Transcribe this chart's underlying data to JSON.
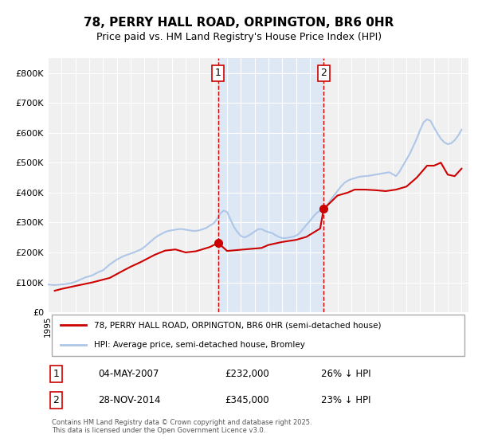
{
  "title": "78, PERRY HALL ROAD, ORPINGTON, BR6 0HR",
  "subtitle": "Price paid vs. HM Land Registry's House Price Index (HPI)",
  "xlabel": "",
  "ylabel": "",
  "ylim": [
    0,
    850000
  ],
  "xlim_start": 1995.0,
  "xlim_end": 2025.5,
  "background_color": "#ffffff",
  "plot_bg_color": "#f0f0f0",
  "hpi_color": "#aec6e8",
  "price_color": "#cc0000",
  "shaded_region": [
    2007.35,
    2015.0
  ],
  "vline1_x": 2007.35,
  "vline2_x": 2015.0,
  "marker1_x": 2007.35,
  "marker1_y": 232000,
  "marker2_x": 2015.0,
  "marker2_y": 345000,
  "annotation1_label": "1",
  "annotation2_label": "2",
  "legend_line1": "78, PERRY HALL ROAD, ORPINGTON, BR6 0HR (semi-detached house)",
  "legend_line2": "HPI: Average price, semi-detached house, Bromley",
  "table_row1": [
    "1",
    "04-MAY-2007",
    "£232,000",
    "26% ↓ HPI"
  ],
  "table_row2": [
    "2",
    "28-NOV-2014",
    "£345,000",
    "23% ↓ HPI"
  ],
  "footer": "Contains HM Land Registry data © Crown copyright and database right 2025.\nThis data is licensed under the Open Government Licence v3.0.",
  "ytick_labels": [
    "£0",
    "£100K",
    "£200K",
    "£300K",
    "£400K",
    "£500K",
    "£600K",
    "£700K",
    "£800K"
  ],
  "ytick_values": [
    0,
    100000,
    200000,
    300000,
    400000,
    500000,
    600000,
    700000,
    800000
  ],
  "hpi_data_x": [
    1995.0,
    1995.25,
    1995.5,
    1995.75,
    1996.0,
    1996.25,
    1996.5,
    1996.75,
    1997.0,
    1997.25,
    1997.5,
    1997.75,
    1998.0,
    1998.25,
    1998.5,
    1998.75,
    1999.0,
    1999.25,
    1999.5,
    1999.75,
    2000.0,
    2000.25,
    2000.5,
    2000.75,
    2001.0,
    2001.25,
    2001.5,
    2001.75,
    2002.0,
    2002.25,
    2002.5,
    2002.75,
    2003.0,
    2003.25,
    2003.5,
    2003.75,
    2004.0,
    2004.25,
    2004.5,
    2004.75,
    2005.0,
    2005.25,
    2005.5,
    2005.75,
    2006.0,
    2006.25,
    2006.5,
    2006.75,
    2007.0,
    2007.25,
    2007.5,
    2007.75,
    2008.0,
    2008.25,
    2008.5,
    2008.75,
    2009.0,
    2009.25,
    2009.5,
    2009.75,
    2010.0,
    2010.25,
    2010.5,
    2010.75,
    2011.0,
    2011.25,
    2011.5,
    2011.75,
    2012.0,
    2012.25,
    2012.5,
    2012.75,
    2013.0,
    2013.25,
    2013.5,
    2013.75,
    2014.0,
    2014.25,
    2014.5,
    2014.75,
    2015.0,
    2015.25,
    2015.5,
    2015.75,
    2016.0,
    2016.25,
    2016.5,
    2016.75,
    2017.0,
    2017.25,
    2017.5,
    2017.75,
    2018.0,
    2018.25,
    2018.5,
    2018.75,
    2019.0,
    2019.25,
    2019.5,
    2019.75,
    2020.0,
    2020.25,
    2020.5,
    2020.75,
    2021.0,
    2021.25,
    2021.5,
    2021.75,
    2022.0,
    2022.25,
    2022.5,
    2022.75,
    2023.0,
    2023.25,
    2023.5,
    2023.75,
    2024.0,
    2024.25,
    2024.5,
    2024.75,
    2025.0
  ],
  "hpi_data_y": [
    93000,
    92000,
    91000,
    92000,
    93000,
    94000,
    96000,
    98000,
    102000,
    107000,
    112000,
    117000,
    120000,
    124000,
    130000,
    136000,
    140000,
    150000,
    160000,
    168000,
    176000,
    182000,
    188000,
    192000,
    196000,
    200000,
    205000,
    210000,
    218000,
    228000,
    238000,
    248000,
    256000,
    262000,
    268000,
    272000,
    274000,
    276000,
    278000,
    278000,
    276000,
    274000,
    272000,
    272000,
    274000,
    278000,
    282000,
    290000,
    296000,
    310000,
    330000,
    340000,
    335000,
    310000,
    285000,
    268000,
    255000,
    250000,
    255000,
    262000,
    270000,
    278000,
    278000,
    272000,
    268000,
    265000,
    258000,
    252000,
    248000,
    248000,
    250000,
    252000,
    256000,
    264000,
    278000,
    292000,
    305000,
    320000,
    332000,
    340000,
    348000,
    358000,
    375000,
    390000,
    405000,
    420000,
    432000,
    440000,
    445000,
    448000,
    452000,
    454000,
    455000,
    456000,
    458000,
    460000,
    462000,
    464000,
    466000,
    468000,
    462000,
    455000,
    470000,
    490000,
    510000,
    530000,
    555000,
    580000,
    610000,
    635000,
    645000,
    640000,
    618000,
    598000,
    580000,
    568000,
    562000,
    565000,
    575000,
    590000,
    610000
  ],
  "price_data_x": [
    1995.5,
    1996.0,
    1997.0,
    1998.25,
    1999.5,
    2000.5,
    2001.0,
    2001.75,
    2002.75,
    2003.5,
    2004.25,
    2005.0,
    2005.75,
    2006.75,
    2007.35,
    2008.0,
    2009.25,
    2010.5,
    2011.0,
    2012.0,
    2013.0,
    2013.75,
    2014.75,
    2015.0,
    2016.0,
    2016.75,
    2017.25,
    2018.0,
    2018.75,
    2019.5,
    2020.25,
    2021.0,
    2021.75,
    2022.5,
    2023.0,
    2023.5,
    2024.0,
    2024.5,
    2025.0
  ],
  "price_data_y": [
    72000,
    78000,
    88000,
    100000,
    115000,
    140000,
    152000,
    168000,
    192000,
    206000,
    210000,
    200000,
    204000,
    218000,
    232000,
    205000,
    210000,
    215000,
    225000,
    235000,
    242000,
    252000,
    280000,
    345000,
    390000,
    400000,
    410000,
    410000,
    408000,
    405000,
    410000,
    420000,
    450000,
    490000,
    490000,
    500000,
    460000,
    455000,
    480000
  ]
}
